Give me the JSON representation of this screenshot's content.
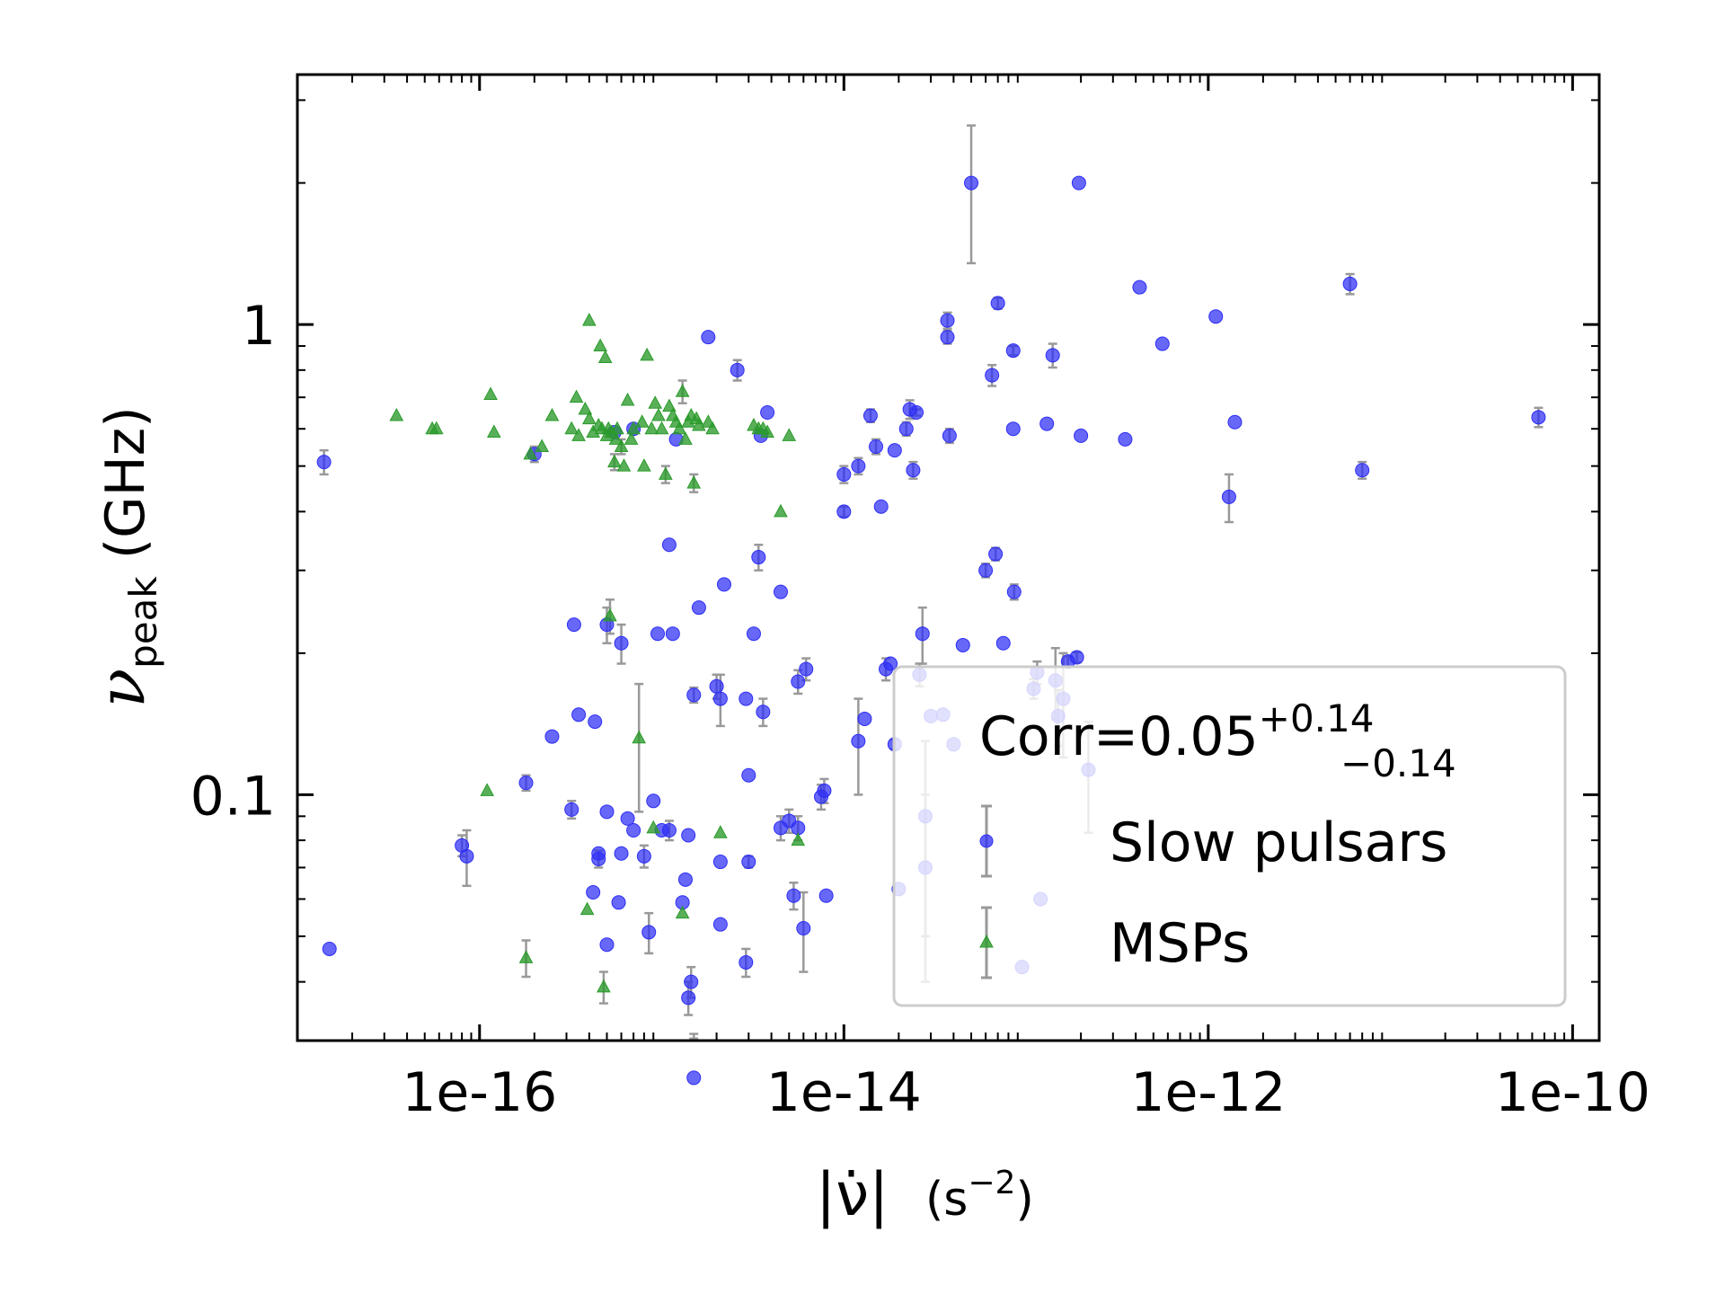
{
  "chart_data": {
    "type": "scatter",
    "xlabel_abs": "|ν̇̇|",
    "xlabel_unit_base": "(s",
    "xlabel_unit_exp": "−2",
    "xlabel_unit_close": ")",
    "ylabel_symbol": "ν",
    "ylabel_sub": "peak",
    "ylabel_unit": " (GHz)",
    "x_scale": "log",
    "y_scale": "log",
    "xlim": [
      1e-17,
      1.4e-10
    ],
    "ylim": [
      0.03,
      3.4
    ],
    "x_ticks": [
      {
        "value": 1e-16,
        "label": "1e-16"
      },
      {
        "value": 1e-14,
        "label": "1e-14"
      },
      {
        "value": 1e-12,
        "label": "1e-12"
      },
      {
        "value": 1e-10,
        "label": "1e-10"
      }
    ],
    "y_ticks": [
      {
        "value": 1,
        "label": "1"
      },
      {
        "value": 0.1,
        "label": "0.1"
      }
    ],
    "grid": false,
    "legend": {
      "placement": "lower-right",
      "annotation_main": "Corr=0.05",
      "annotation_sup": "+0.14",
      "annotation_sub": "−0.14",
      "entries": [
        "Slow pulsars",
        "MSPs"
      ]
    },
    "colors": {
      "slow": "#2e2ef5",
      "msp": "#2a9a2a",
      "errorbar": "#999999",
      "legend_border": "#cccccc"
    },
    "series": [
      {
        "name": "Slow pulsars",
        "marker": "circle",
        "points": [
          [
            1.4e-17,
            0.51,
            0.03
          ],
          [
            1.5e-17,
            0.047,
            0
          ],
          [
            8e-17,
            0.078,
            0.004
          ],
          [
            8.5e-17,
            0.074,
            0.01
          ],
          [
            1.8e-16,
            0.106,
            0.004
          ],
          [
            2e-16,
            0.53,
            0.02
          ],
          [
            2.5e-16,
            0.133,
            0
          ],
          [
            3.2e-16,
            0.093,
            0.004
          ],
          [
            3.3e-16,
            0.23,
            0
          ],
          [
            3.5e-16,
            0.148,
            0
          ],
          [
            4.2e-16,
            0.062,
            0
          ],
          [
            4.3e-16,
            0.143,
            0
          ],
          [
            4.5e-16,
            0.075,
            0
          ],
          [
            4.5e-16,
            0.073,
            0.003
          ],
          [
            5e-16,
            0.092,
            0
          ],
          [
            5e-16,
            0.048,
            0
          ],
          [
            5e-16,
            0.23,
            0.02
          ],
          [
            5.5e-16,
            0.59,
            0
          ],
          [
            5.8e-16,
            0.059,
            0
          ],
          [
            6e-16,
            0.21,
            0.02
          ],
          [
            6e-16,
            0.075,
            0
          ],
          [
            6.5e-16,
            0.089,
            0
          ],
          [
            7e-16,
            0.084,
            0
          ],
          [
            7e-16,
            0.6,
            0
          ],
          [
            8e-16,
            0.074,
            0.004
          ],
          [
            8.5e-16,
            0.051,
            0.005
          ],
          [
            9e-16,
            0.097,
            0
          ],
          [
            9.5e-16,
            0.22,
            0
          ],
          [
            1e-15,
            0.084,
            0
          ],
          [
            1.1e-15,
            0.34,
            0
          ],
          [
            1.1e-15,
            0.084,
            0.004
          ],
          [
            1.15e-15,
            0.22,
            0
          ],
          [
            1.2e-15,
            0.57,
            0
          ],
          [
            1.3e-15,
            0.059,
            0
          ],
          [
            1.35e-15,
            0.066,
            0
          ],
          [
            1.4e-15,
            0.082,
            0
          ],
          [
            1.4e-15,
            0.037,
            0.003
          ],
          [
            1.45e-15,
            0.04,
            0.003
          ],
          [
            1.5e-15,
            0.163,
            0.006
          ],
          [
            1.5e-15,
            0.025,
            0.006
          ],
          [
            1.6e-15,
            0.25,
            0
          ],
          [
            1.8e-15,
            0.94,
            0
          ],
          [
            2e-15,
            0.17,
            0.01
          ],
          [
            2.1e-15,
            0.16,
            0.02
          ],
          [
            2.1e-15,
            0.072,
            0
          ],
          [
            2.1e-15,
            0.053,
            0
          ],
          [
            2.2e-15,
            0.28,
            0
          ],
          [
            2.6e-15,
            0.8,
            0.04
          ],
          [
            2.9e-15,
            0.16,
            0
          ],
          [
            2.9e-15,
            0.044,
            0.003
          ],
          [
            3e-15,
            0.11,
            0
          ],
          [
            3e-15,
            0.072,
            0.002
          ],
          [
            3.2e-15,
            0.22,
            0
          ],
          [
            3.4e-15,
            0.32,
            0.02
          ],
          [
            3.5e-15,
            0.58,
            0
          ],
          [
            3.6e-15,
            0.15,
            0.01
          ],
          [
            3.8e-15,
            0.65,
            0
          ],
          [
            4.5e-15,
            0.085,
            0.005
          ],
          [
            4.5e-15,
            0.27,
            0
          ],
          [
            5e-15,
            0.088,
            0.005
          ],
          [
            5.3e-15,
            0.061,
            0.004
          ],
          [
            5.6e-15,
            0.174,
            0.01
          ],
          [
            5.6e-15,
            0.085,
            0.005
          ],
          [
            6e-15,
            0.052,
            0.01
          ],
          [
            6.2e-15,
            0.185,
            0.01
          ],
          [
            7.5e-15,
            0.099,
            0.006
          ],
          [
            7.8e-15,
            0.102,
            0.006
          ],
          [
            8e-15,
            0.061,
            0
          ],
          [
            1e-14,
            0.48,
            0.02
          ],
          [
            1e-14,
            0.4,
            0.01
          ],
          [
            1.2e-14,
            0.5,
            0.02
          ],
          [
            1.2e-14,
            0.13,
            0.03
          ],
          [
            1.3e-14,
            0.145,
            0
          ],
          [
            1.4e-14,
            0.64,
            0.02
          ],
          [
            1.5e-14,
            0.55,
            0.02
          ],
          [
            1.6e-14,
            0.41,
            0
          ],
          [
            1.7e-14,
            0.185,
            0.01
          ],
          [
            1.8e-14,
            0.19,
            0
          ],
          [
            1.9e-14,
            0.128,
            0.003
          ],
          [
            1.9e-14,
            0.54,
            0
          ],
          [
            2e-14,
            0.063,
            0
          ],
          [
            2.2e-14,
            0.6,
            0.02
          ],
          [
            2.3e-14,
            0.66,
            0.03
          ],
          [
            2.4e-14,
            0.49,
            0.02
          ],
          [
            2.5e-14,
            0.65,
            0.01
          ],
          [
            2.6e-14,
            0.18,
            0.01
          ],
          [
            2.7e-14,
            0.22,
            0.03
          ],
          [
            2.8e-14,
            0.09,
            0.04
          ],
          [
            2.8e-14,
            0.07,
            0.03
          ],
          [
            3e-14,
            0.147,
            0
          ],
          [
            3.5e-14,
            0.148,
            0
          ],
          [
            3.7e-14,
            1.02,
            0.04
          ],
          [
            3.7e-14,
            0.94,
            0.03
          ],
          [
            3.8e-14,
            0.58,
            0.02
          ],
          [
            4e-14,
            0.128,
            0
          ],
          [
            4.5e-14,
            0.208,
            0
          ],
          [
            5e-14,
            2,
            0.65
          ],
          [
            6e-14,
            0.3,
            0.01
          ],
          [
            6.5e-14,
            0.78,
            0.04
          ],
          [
            6.8e-14,
            0.325,
            0.01
          ],
          [
            7e-14,
            1.11,
            0.03
          ],
          [
            7.5e-14,
            0.21,
            0
          ],
          [
            8.5e-14,
            0.88,
            0.02
          ],
          [
            8.5e-14,
            0.6,
            0
          ],
          [
            8.6e-14,
            0.27,
            0.01
          ],
          [
            9.5e-14,
            0.043,
            0
          ],
          [
            1.1e-13,
            0.168,
            0.008
          ],
          [
            1.15e-13,
            0.182,
            0.01
          ],
          [
            1.2e-13,
            0.06,
            0
          ],
          [
            1.3e-13,
            0.615,
            0
          ],
          [
            1.4e-13,
            0.86,
            0.05
          ],
          [
            1.45e-13,
            0.175,
            0.03
          ],
          [
            1.5e-13,
            0.147,
            0.02
          ],
          [
            1.6e-13,
            0.16,
            0.04
          ],
          [
            1.7e-13,
            0.192,
            0.005
          ],
          [
            1.9e-13,
            0.196,
            0.005
          ],
          [
            1.95e-13,
            2,
            0
          ],
          [
            2e-13,
            0.58,
            0
          ],
          [
            2.2e-13,
            0.113,
            0.03
          ],
          [
            3.5e-13,
            0.57,
            0
          ],
          [
            4.2e-13,
            1.2,
            0
          ],
          [
            5.6e-13,
            0.91,
            0
          ],
          [
            1.1e-12,
            1.04,
            0
          ],
          [
            1.3e-12,
            0.43,
            0.05
          ],
          [
            1.4e-12,
            0.62,
            0
          ],
          [
            6e-12,
            1.22,
            0.06
          ],
          [
            7e-12,
            0.49,
            0.02
          ],
          [
            6.5e-11,
            0.635,
            0.03
          ]
        ]
      },
      {
        "name": "MSPs",
        "marker": "triangle",
        "points": [
          [
            3.5e-17,
            0.64,
            0
          ],
          [
            5.5e-17,
            0.6,
            0
          ],
          [
            5.8e-17,
            0.6,
            0
          ],
          [
            1.1e-16,
            0.102,
            0
          ],
          [
            1.15e-16,
            0.71,
            0
          ],
          [
            1.2e-16,
            0.59,
            0
          ],
          [
            1.8e-16,
            0.045,
            0.004
          ],
          [
            1.9e-16,
            0.53,
            0
          ],
          [
            2.2e-16,
            0.55,
            0
          ],
          [
            2.5e-16,
            0.64,
            0
          ],
          [
            3.2e-16,
            0.6,
            0
          ],
          [
            3.4e-16,
            0.7,
            0
          ],
          [
            3.5e-16,
            0.58,
            0
          ],
          [
            3.8e-16,
            0.66,
            0
          ],
          [
            3.9e-16,
            0.057,
            0
          ],
          [
            4e-16,
            0.63,
            0
          ],
          [
            4e-16,
            1.02,
            0
          ],
          [
            4.2e-16,
            0.59,
            0
          ],
          [
            4.5e-16,
            0.61,
            0
          ],
          [
            4.6e-16,
            0.9,
            0
          ],
          [
            4.7e-16,
            0.6,
            0
          ],
          [
            4.8e-16,
            0.039,
            0.003
          ],
          [
            4.9e-16,
            0.85,
            0
          ],
          [
            5e-16,
            0.58,
            0
          ],
          [
            5.1e-16,
            0.6,
            0
          ],
          [
            5.2e-16,
            0.24,
            0.02
          ],
          [
            5.3e-16,
            0.59,
            0
          ],
          [
            5.5e-16,
            0.51,
            0.02
          ],
          [
            5.6e-16,
            0.57,
            0
          ],
          [
            5.7e-16,
            0.6,
            0
          ],
          [
            6e-16,
            0.55,
            0.02
          ],
          [
            6.2e-16,
            0.5,
            0
          ],
          [
            6.5e-16,
            0.69,
            0
          ],
          [
            6.8e-16,
            0.57,
            0
          ],
          [
            7e-16,
            0.6,
            0
          ],
          [
            7.5e-16,
            0.132,
            0.04
          ],
          [
            7.8e-16,
            0.62,
            0
          ],
          [
            8e-16,
            0.5,
            0
          ],
          [
            8.3e-16,
            0.86,
            0
          ],
          [
            8.8e-16,
            0.6,
            0
          ],
          [
            9e-16,
            0.085,
            0
          ],
          [
            9.2e-16,
            0.68,
            0
          ],
          [
            9.6e-16,
            0.64,
            0
          ],
          [
            1e-15,
            0.6,
            0
          ],
          [
            1.05e-15,
            0.48,
            0.02
          ],
          [
            1.1e-15,
            0.67,
            0
          ],
          [
            1.15e-15,
            0.64,
            0
          ],
          [
            1.2e-15,
            0.62,
            0
          ],
          [
            1.25e-15,
            0.6,
            0
          ],
          [
            1.3e-15,
            0.72,
            0.04
          ],
          [
            1.3e-15,
            0.056,
            0
          ],
          [
            1.35e-15,
            0.57,
            0
          ],
          [
            1.4e-15,
            0.62,
            0
          ],
          [
            1.45e-15,
            0.64,
            0
          ],
          [
            1.5e-15,
            0.46,
            0.02
          ],
          [
            1.55e-15,
            0.63,
            0
          ],
          [
            1.6e-15,
            0.61,
            0
          ],
          [
            1.8e-15,
            0.62,
            0
          ],
          [
            1.9e-15,
            0.6,
            0
          ],
          [
            2.1e-15,
            0.083,
            0
          ],
          [
            3.2e-15,
            0.61,
            0
          ],
          [
            3.4e-15,
            0.6,
            0
          ],
          [
            3.6e-15,
            0.6,
            0
          ],
          [
            3.8e-15,
            0.59,
            0
          ],
          [
            4.5e-15,
            0.4,
            0
          ],
          [
            5e-15,
            0.58,
            0
          ],
          [
            5.6e-15,
            0.08,
            0
          ]
        ]
      }
    ]
  }
}
